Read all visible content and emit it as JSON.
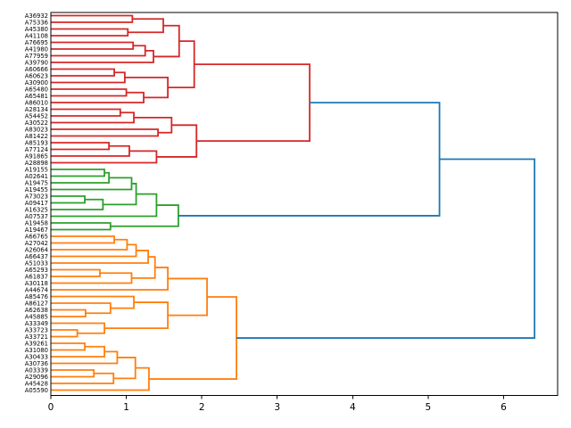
{
  "chart_data": {
    "type": "dendrogram",
    "orientation": "right",
    "title": "",
    "xlabel": "",
    "ylabel": "",
    "xlim": [
      0,
      6.72
    ],
    "x_ticks": [
      "0",
      "1",
      "2",
      "3",
      "4",
      "5",
      "6"
    ],
    "grid": false,
    "colors": {
      "red": "#d62728",
      "green": "#2ca02c",
      "orange": "#ff7f0e",
      "blue": "#1f77b4",
      "axis": "#000000"
    },
    "leaves": [
      "A36932",
      "A75336",
      "A45380",
      "A41108",
      "A76695",
      "A41980",
      "A77959",
      "A39790",
      "A60666",
      "A60623",
      "A30900",
      "A65480",
      "A65481",
      "A86010",
      "A28134",
      "A54452",
      "A30522",
      "A83023",
      "A81422",
      "A85193",
      "A77124",
      "A91865",
      "A28898",
      "A19155",
      "A02641",
      "A19475",
      "A19455",
      "A73023",
      "A09417",
      "A16325",
      "A07537",
      "A19458",
      "A19467",
      "A66765",
      "A27042",
      "A26064",
      "A66437",
      "A51033",
      "A65293",
      "A61837",
      "A30118",
      "A44674",
      "A85476",
      "A86127",
      "A62638",
      "A45885",
      "A33349",
      "A33723",
      "A33721",
      "A39261",
      "A31080",
      "A30433",
      "A30736",
      "A03339",
      "A29096",
      "A45428",
      "A05590"
    ],
    "merges": [
      {
        "id": "R1",
        "a": "A36932",
        "b": "A75336",
        "h": 1.08,
        "col": "red"
      },
      {
        "id": "R2",
        "a": "A45380",
        "b": "A41108",
        "h": 1.02,
        "col": "red"
      },
      {
        "id": "R3",
        "a": "R1",
        "b": "R2",
        "h": 1.49,
        "col": "red"
      },
      {
        "id": "R4",
        "a": "A76695",
        "b": "A41980",
        "h": 1.09,
        "col": "red"
      },
      {
        "id": "R5",
        "a": "R4",
        "b": "A77959",
        "h": 1.25,
        "col": "red"
      },
      {
        "id": "R6",
        "a": "R5",
        "b": "A39790",
        "h": 1.36,
        "col": "red"
      },
      {
        "id": "R7",
        "a": "R3",
        "b": "R6",
        "h": 1.7,
        "col": "red"
      },
      {
        "id": "R8",
        "a": "A60666",
        "b": "A60623",
        "h": 0.84,
        "col": "red"
      },
      {
        "id": "R9",
        "a": "R8",
        "b": "A30900",
        "h": 0.98,
        "col": "red"
      },
      {
        "id": "R10",
        "a": "A65480",
        "b": "A65481",
        "h": 1.0,
        "col": "red"
      },
      {
        "id": "R11",
        "a": "R10",
        "b": "A86010",
        "h": 1.23,
        "col": "red"
      },
      {
        "id": "R12",
        "a": "R9",
        "b": "R11",
        "h": 1.55,
        "col": "red"
      },
      {
        "id": "R13",
        "a": "R7",
        "b": "R12",
        "h": 1.9,
        "col": "red"
      },
      {
        "id": "R14",
        "a": "A28134",
        "b": "A54452",
        "h": 0.92,
        "col": "red"
      },
      {
        "id": "R15",
        "a": "R14",
        "b": "A30522",
        "h": 1.1,
        "col": "red"
      },
      {
        "id": "R16",
        "a": "A83023",
        "b": "A81422",
        "h": 1.42,
        "col": "red"
      },
      {
        "id": "R17",
        "a": "A85193",
        "b": "A77124",
        "h": 0.77,
        "col": "red"
      },
      {
        "id": "R18",
        "a": "R17",
        "b": "A91865",
        "h": 1.04,
        "col": "red"
      },
      {
        "id": "R19",
        "a": "R18",
        "b": "A28898",
        "h": 1.4,
        "col": "red"
      },
      {
        "id": "R20",
        "a": "R15",
        "b": "R16",
        "h": 1.6,
        "col": "red"
      },
      {
        "id": "R21",
        "a": "R20",
        "b": "R19",
        "h": 1.93,
        "col": "red"
      },
      {
        "id": "R22",
        "a": "R13",
        "b": "R21",
        "h": 3.43,
        "col": "red"
      },
      {
        "id": "G1",
        "a": "A19155",
        "b": "A02641",
        "h": 0.71,
        "col": "green"
      },
      {
        "id": "G2",
        "a": "G1",
        "b": "A19475",
        "h": 0.77,
        "col": "green"
      },
      {
        "id": "G3",
        "a": "G2",
        "b": "A19455",
        "h": 1.07,
        "col": "green"
      },
      {
        "id": "G4",
        "a": "A73023",
        "b": "A09417",
        "h": 0.45,
        "col": "green"
      },
      {
        "id": "G5",
        "a": "G4",
        "b": "A16325",
        "h": 0.69,
        "col": "green"
      },
      {
        "id": "G6",
        "a": "G3",
        "b": "G5",
        "h": 1.13,
        "col": "green"
      },
      {
        "id": "G7",
        "a": "G6",
        "b": "A07537",
        "h": 1.4,
        "col": "green"
      },
      {
        "id": "G8",
        "a": "A19458",
        "b": "A19467",
        "h": 0.79,
        "col": "green"
      },
      {
        "id": "G9",
        "a": "G7",
        "b": "G8",
        "h": 1.69,
        "col": "green"
      },
      {
        "id": "O1",
        "a": "A66765",
        "b": "A27042",
        "h": 0.84,
        "col": "orange"
      },
      {
        "id": "O2",
        "a": "O1",
        "b": "A26064",
        "h": 1.01,
        "col": "orange"
      },
      {
        "id": "O3",
        "a": "O2",
        "b": "A66437",
        "h": 1.13,
        "col": "orange"
      },
      {
        "id": "O4",
        "a": "O3",
        "b": "A51033",
        "h": 1.29,
        "col": "orange"
      },
      {
        "id": "O5",
        "a": "A65293",
        "b": "A61837",
        "h": 0.65,
        "col": "orange"
      },
      {
        "id": "O6",
        "a": "O5",
        "b": "A30118",
        "h": 1.07,
        "col": "orange"
      },
      {
        "id": "O7",
        "a": "O4",
        "b": "O6",
        "h": 1.38,
        "col": "orange"
      },
      {
        "id": "O8",
        "a": "O7",
        "b": "A44674",
        "h": 1.55,
        "col": "orange"
      },
      {
        "id": "P1",
        "a": "A62638",
        "b": "A45885",
        "h": 0.46,
        "col": "orange"
      },
      {
        "id": "P2",
        "a": "A86127",
        "b": "P1",
        "h": 0.79,
        "col": "orange"
      },
      {
        "id": "P3",
        "a": "A85476",
        "b": "P2",
        "h": 1.1,
        "col": "orange"
      },
      {
        "id": "B1",
        "a": "A33723",
        "b": "A33721",
        "h": 0.35,
        "col": "orange"
      },
      {
        "id": "B2",
        "a": "A33349",
        "b": "B1",
        "h": 0.71,
        "col": "orange"
      },
      {
        "id": "F1",
        "a": "P3",
        "b": "B2",
        "h": 1.55,
        "col": "orange"
      },
      {
        "id": "O9",
        "a": "O8",
        "b": "F1",
        "h": 2.07,
        "col": "orange"
      },
      {
        "id": "C1",
        "a": "A39261",
        "b": "A31080",
        "h": 0.45,
        "col": "orange"
      },
      {
        "id": "C2",
        "a": "C1",
        "b": "A30433",
        "h": 0.71,
        "col": "orange"
      },
      {
        "id": "C3",
        "a": "C2",
        "b": "A30736",
        "h": 0.88,
        "col": "orange"
      },
      {
        "id": "D1",
        "a": "A03339",
        "b": "A29096",
        "h": 0.57,
        "col": "orange"
      },
      {
        "id": "D2",
        "a": "D1",
        "b": "A45428",
        "h": 0.83,
        "col": "orange"
      },
      {
        "id": "E1",
        "a": "C3",
        "b": "D2",
        "h": 1.12,
        "col": "orange"
      },
      {
        "id": "E2",
        "a": "E1",
        "b": "A05590",
        "h": 1.3,
        "col": "orange"
      },
      {
        "id": "RO",
        "a": "O9",
        "b": "E2",
        "h": 2.46,
        "col": "orange"
      },
      {
        "id": "L1",
        "a": "R22",
        "b": "G9",
        "h": 5.15,
        "col": "blue"
      },
      {
        "id": "L2",
        "a": "L1",
        "b": "RO",
        "h": 6.41,
        "col": "blue"
      }
    ]
  }
}
